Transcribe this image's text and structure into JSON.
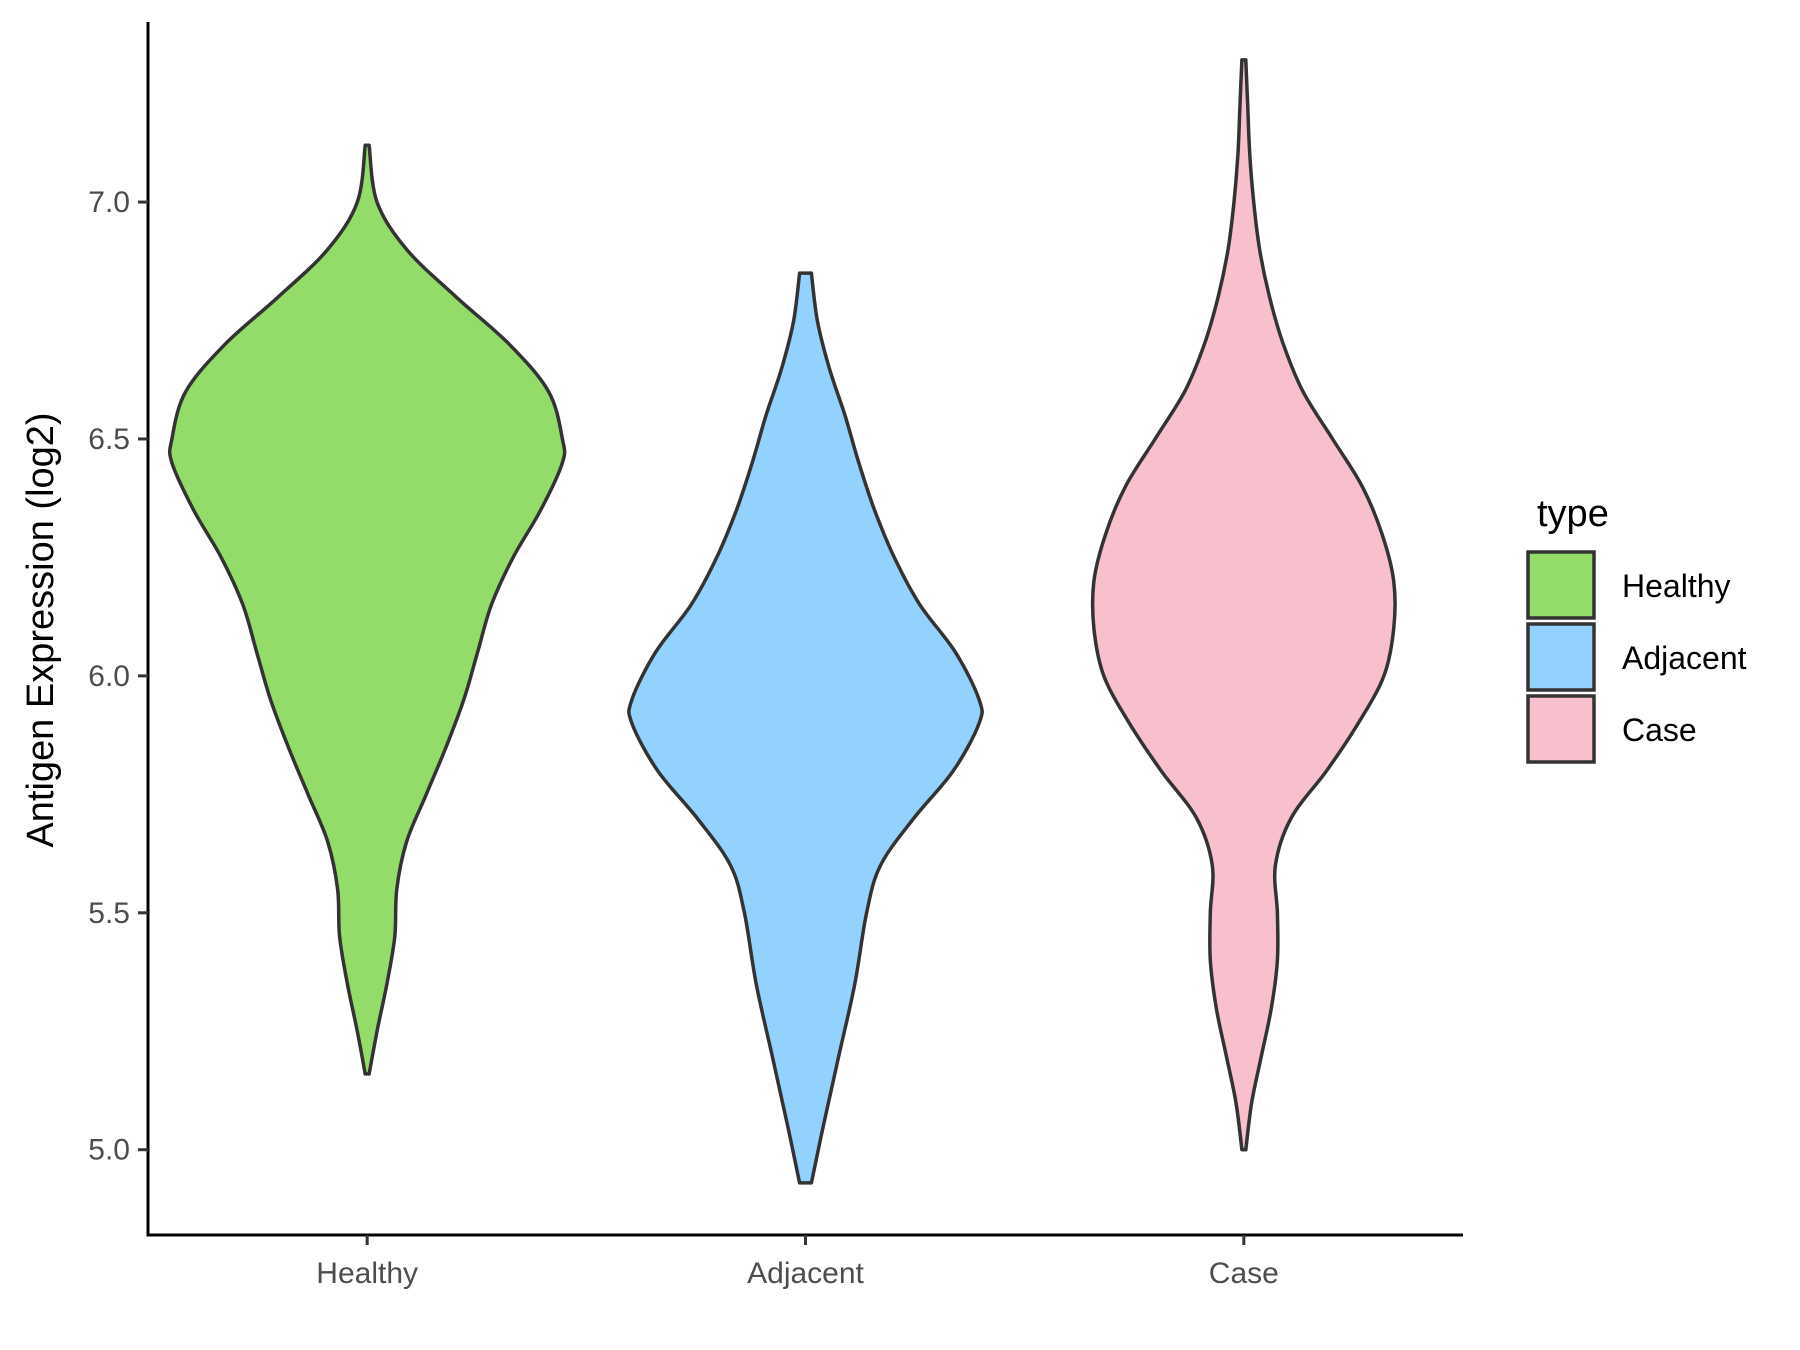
{
  "chart_data": {
    "type": "violin",
    "title": "",
    "xlabel": "",
    "ylabel": "Antigen Expression (log2)",
    "ylim": [
      4.82,
      7.38
    ],
    "yticks": [
      "5.0",
      "5.5",
      "6.0",
      "6.5",
      "7.0"
    ],
    "grid": false,
    "categories": [
      "Healthy",
      "Adjacent",
      "Case"
    ],
    "legend": {
      "title": "type",
      "position": "right",
      "entries": [
        "Healthy",
        "Adjacent",
        "Case"
      ]
    },
    "series": [
      {
        "name": "Healthy",
        "color": "#93dc6a",
        "range": [
          5.16,
          7.12
        ],
        "profile": [
          [
            5.16,
            0.01
          ],
          [
            5.25,
            0.05
          ],
          [
            5.35,
            0.1
          ],
          [
            5.45,
            0.14
          ],
          [
            5.55,
            0.15
          ],
          [
            5.65,
            0.2
          ],
          [
            5.75,
            0.3
          ],
          [
            5.85,
            0.4
          ],
          [
            5.95,
            0.49
          ],
          [
            6.05,
            0.56
          ],
          [
            6.15,
            0.63
          ],
          [
            6.25,
            0.74
          ],
          [
            6.35,
            0.88
          ],
          [
            6.45,
            0.99
          ],
          [
            6.5,
            0.99
          ],
          [
            6.6,
            0.92
          ],
          [
            6.7,
            0.72
          ],
          [
            6.8,
            0.45
          ],
          [
            6.9,
            0.2
          ],
          [
            7.0,
            0.05
          ],
          [
            7.12,
            0.01
          ]
        ]
      },
      {
        "name": "Adjacent",
        "color": "#93d2ff",
        "range": [
          4.93,
          6.85
        ],
        "profile": [
          [
            4.93,
            0.03
          ],
          [
            5.05,
            0.09
          ],
          [
            5.2,
            0.17
          ],
          [
            5.35,
            0.25
          ],
          [
            5.5,
            0.31
          ],
          [
            5.6,
            0.38
          ],
          [
            5.7,
            0.55
          ],
          [
            5.8,
            0.75
          ],
          [
            5.9,
            0.88
          ],
          [
            5.95,
            0.88
          ],
          [
            6.05,
            0.76
          ],
          [
            6.15,
            0.58
          ],
          [
            6.25,
            0.45
          ],
          [
            6.35,
            0.35
          ],
          [
            6.45,
            0.27
          ],
          [
            6.55,
            0.2
          ],
          [
            6.65,
            0.12
          ],
          [
            6.75,
            0.06
          ],
          [
            6.85,
            0.03
          ]
        ]
      },
      {
        "name": "Case",
        "color": "#f8c0cc",
        "range": [
          5.0,
          7.3
        ],
        "profile": [
          [
            5.0,
            0.01
          ],
          [
            5.1,
            0.04
          ],
          [
            5.2,
            0.09
          ],
          [
            5.3,
            0.14
          ],
          [
            5.4,
            0.17
          ],
          [
            5.5,
            0.17
          ],
          [
            5.6,
            0.16
          ],
          [
            5.7,
            0.24
          ],
          [
            5.8,
            0.42
          ],
          [
            5.9,
            0.58
          ],
          [
            6.0,
            0.71
          ],
          [
            6.1,
            0.76
          ],
          [
            6.2,
            0.76
          ],
          [
            6.3,
            0.7
          ],
          [
            6.4,
            0.6
          ],
          [
            6.5,
            0.45
          ],
          [
            6.6,
            0.3
          ],
          [
            6.7,
            0.2
          ],
          [
            6.8,
            0.13
          ],
          [
            6.9,
            0.08
          ],
          [
            7.0,
            0.05
          ],
          [
            7.1,
            0.03
          ],
          [
            7.2,
            0.02
          ],
          [
            7.3,
            0.01
          ]
        ]
      }
    ]
  }
}
